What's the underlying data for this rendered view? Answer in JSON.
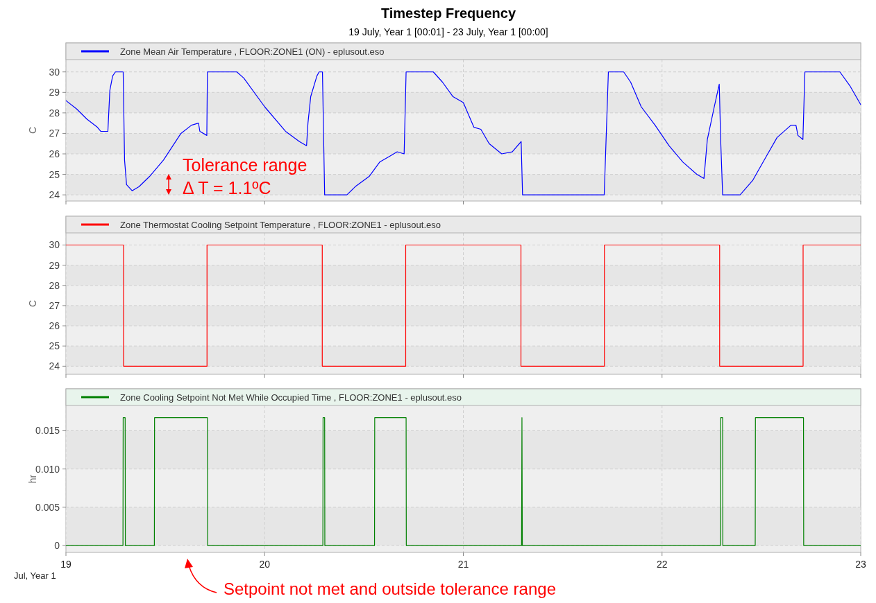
{
  "chart_data": [
    {
      "type": "line",
      "title": "Timestep Frequency",
      "subtitle": "19 July, Year 1  [00:01] - 23 July, Year 1  [00:00]",
      "ylabel": "C",
      "xlim": [
        19,
        23
      ],
      "xticks": [
        19,
        20,
        21,
        22,
        23
      ],
      "ylim": [
        23.7,
        30.6
      ],
      "yticks": [
        24,
        25,
        26,
        27,
        28,
        29,
        30
      ],
      "grid": true,
      "legend": "top left",
      "tick_labels": "y",
      "annotations": [
        "Tolerance range",
        "Δ T = 1.1ºC"
      ],
      "series": [
        {
          "name": "Zone Mean Air Temperature , FLOOR:ZONE1 (ON) - eplusout.eso",
          "color": "#0000ff",
          "x": [
            19.0,
            19.053,
            19.105,
            19.158,
            19.175,
            19.211,
            19.221,
            19.235,
            19.249,
            19.288,
            19.295,
            19.305,
            19.333,
            19.368,
            19.421,
            19.491,
            19.579,
            19.632,
            19.667,
            19.674,
            19.709,
            19.712,
            19.86,
            19.895,
            20.0,
            20.105,
            20.175,
            20.211,
            20.218,
            20.232,
            20.263,
            20.274,
            20.291,
            20.302,
            20.414,
            20.456,
            20.526,
            20.579,
            20.632,
            20.667,
            20.702,
            20.712,
            20.849,
            20.895,
            20.947,
            21.0,
            21.053,
            21.088,
            21.13,
            21.193,
            21.246,
            21.291,
            21.298,
            21.709,
            21.73,
            21.807,
            21.842,
            21.895,
            21.965,
            22.035,
            22.105,
            22.175,
            22.211,
            22.228,
            22.263,
            22.288,
            22.295,
            22.305,
            22.393,
            22.456,
            22.526,
            22.579,
            22.649,
            22.674,
            22.684,
            22.709,
            22.719,
            22.895,
            22.947,
            23.0
          ],
          "values": [
            28.6,
            28.2,
            27.7,
            27.3,
            27.1,
            27.1,
            29.1,
            29.8,
            30,
            30,
            25.7,
            24.5,
            24.2,
            24.4,
            24.9,
            25.7,
            27.0,
            27.4,
            27.5,
            27.1,
            26.9,
            30,
            30,
            29.7,
            28.3,
            27.1,
            26.6,
            26.4,
            27.5,
            28.8,
            29.8,
            30,
            30,
            24,
            24,
            24.4,
            24.9,
            25.6,
            25.9,
            26.1,
            26.0,
            30,
            30,
            29.5,
            28.8,
            28.5,
            27.3,
            27.2,
            26.5,
            26.0,
            26.1,
            26.6,
            24,
            24,
            30,
            30,
            29.5,
            28.3,
            27.4,
            26.4,
            25.6,
            25.0,
            24.8,
            26.7,
            28.3,
            29.4,
            26.7,
            24,
            24,
            24.7,
            25.9,
            26.8,
            27.4,
            27.4,
            26.9,
            26.7,
            30,
            30,
            29.3,
            28.4
          ]
        }
      ]
    },
    {
      "type": "line",
      "ylabel": "C",
      "xlim": [
        19,
        23
      ],
      "xticks": [
        19,
        20,
        21,
        22,
        23
      ],
      "ylim": [
        23.6,
        30.6
      ],
      "yticks": [
        24,
        25,
        26,
        27,
        28,
        29,
        30
      ],
      "grid": true,
      "legend": "top left",
      "tick_labels": "y",
      "series": [
        {
          "name": "Zone Thermostat Cooling Setpoint Temperature , FLOOR:ZONE1 - eplusout.eso",
          "color": "#ff0000",
          "x": [
            19,
            19.29,
            19.29,
            19.71,
            19.71,
            20.29,
            20.29,
            20.71,
            20.71,
            21.29,
            21.29,
            21.71,
            21.71,
            22.29,
            22.29,
            22.71,
            22.71,
            23
          ],
          "values": [
            30,
            30,
            24,
            24,
            30,
            30,
            24,
            24,
            30,
            30,
            24,
            24,
            30,
            30,
            24,
            24,
            30,
            30
          ]
        }
      ]
    },
    {
      "type": "line",
      "ylabel": "hr",
      "xlabel": "Jul, Year 1",
      "xlim": [
        19,
        23
      ],
      "xticks": [
        19,
        20,
        21,
        22,
        23
      ],
      "ylim": [
        -0.0009,
        0.0183
      ],
      "yticks": [
        0,
        0.005,
        {
          "value": 0.01,
          "label": "0.010"
        },
        0.015
      ],
      "grid": true,
      "legend": "top left",
      "annotations": [
        "Setpoint not met and outside tolerance range"
      ],
      "series": [
        {
          "name": "Zone Cooling Setpoint Not Met While Occupied Time , FLOOR:ZONE1 - eplusout.eso",
          "color": "#008000",
          "x": [
            19,
            19.287,
            19.288,
            19.298,
            19.299,
            19.445,
            19.446,
            19.712,
            19.713,
            20.293,
            20.294,
            20.302,
            20.303,
            20.553,
            20.554,
            20.712,
            20.713,
            21.293,
            21.295,
            21.297,
            22.294,
            22.295,
            22.305,
            22.306,
            22.469,
            22.47,
            22.712,
            22.713,
            23
          ],
          "values": [
            0,
            0,
            0.0167,
            0.0167,
            0,
            0,
            0.0167,
            0.0167,
            0,
            0,
            0.0167,
            0.0167,
            0,
            0,
            0.0167,
            0.0167,
            0,
            0,
            0.0167,
            0,
            0,
            0.0167,
            0.0167,
            0,
            0,
            0.0167,
            0.0167,
            0,
            0
          ]
        }
      ]
    }
  ]
}
